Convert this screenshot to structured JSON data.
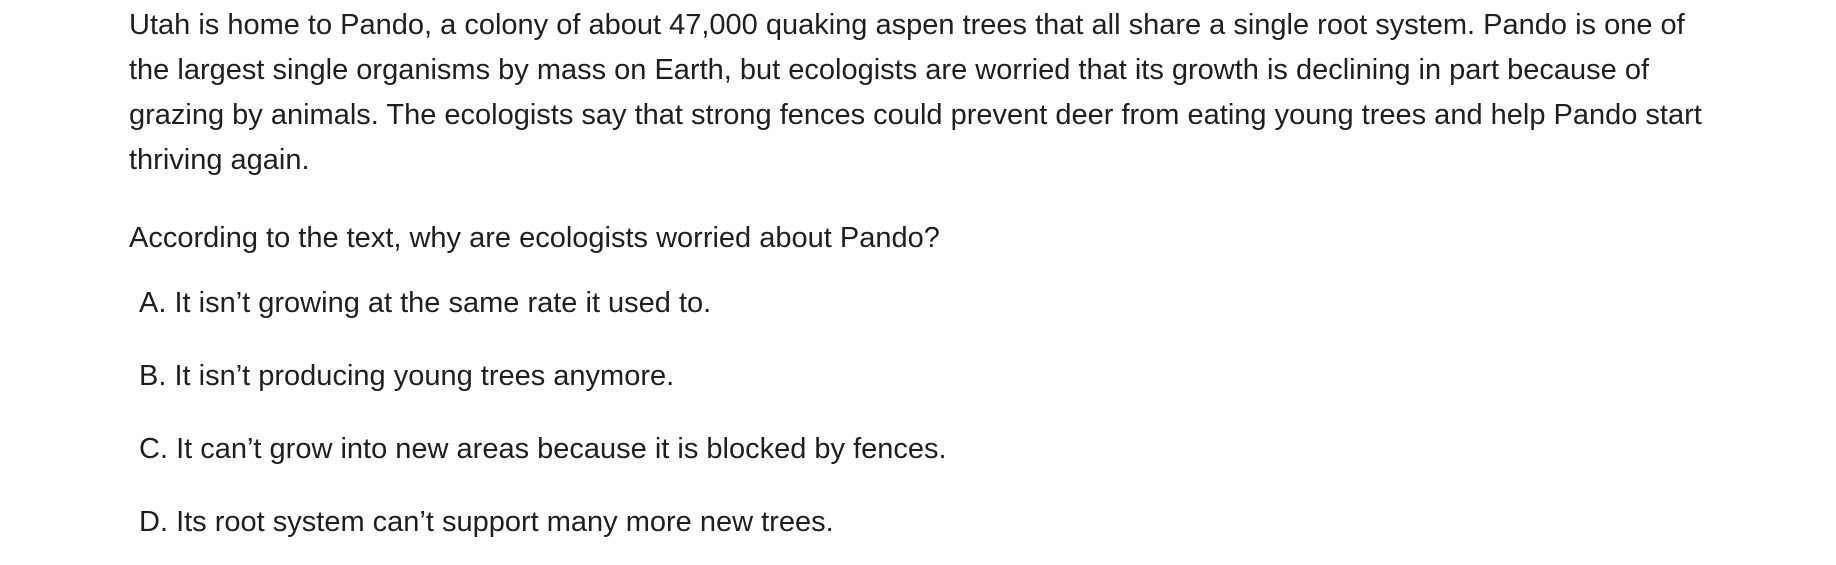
{
  "passage": {
    "text": "Utah is home to Pando, a colony of about 47,000 quaking aspen trees that all share a single root system. Pando is one of the largest single organisms by mass on Earth, but ecologists are worried that its growth is declining in part because of grazing by animals. The ecologists say that strong fences could prevent deer from eating young trees and help Pando start thriving again."
  },
  "question": {
    "text": "According to the text, why are ecologists worried about Pando?"
  },
  "choices": [
    {
      "letter": "A. ",
      "text": "It isn’t growing at the same rate it used to."
    },
    {
      "letter": "B. ",
      "text": "It isn’t producing young trees anymore."
    },
    {
      "letter": "C. ",
      "text": "It can’t grow into new areas because it is blocked by fences."
    },
    {
      "letter": "D. ",
      "text": "Its root system can’t support many more new trees."
    }
  ]
}
